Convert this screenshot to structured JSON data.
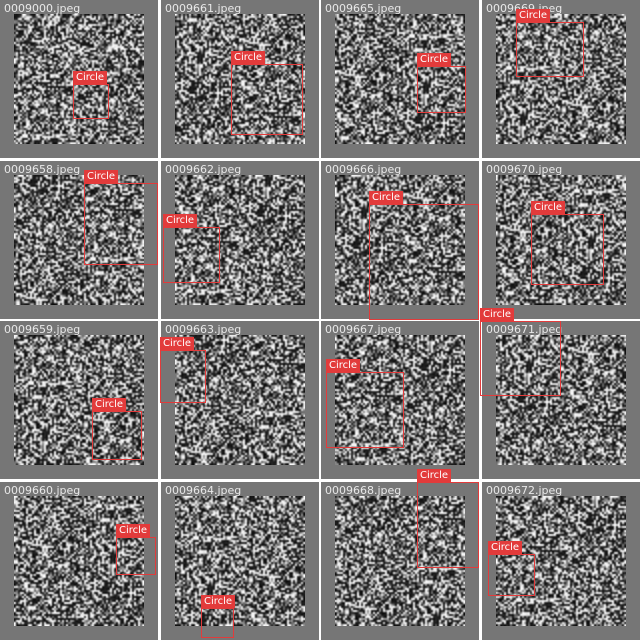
{
  "tiles": [
    {
      "filename": "0009000.jpeg",
      "detection": {
        "label": "Circle"
      }
    },
    {
      "filename": "0009661.jpeg",
      "detection": {
        "label": "Circle"
      }
    },
    {
      "filename": "0009665.jpeg",
      "detection": {
        "label": "Circle"
      }
    },
    {
      "filename": "0009669.jpeg",
      "detection": {
        "label": "Circle"
      }
    },
    {
      "filename": "0009658.jpeg",
      "detection": {
        "label": "Circle"
      }
    },
    {
      "filename": "0009662.jpeg",
      "detection": {
        "label": "Circle"
      }
    },
    {
      "filename": "0009666.jpeg",
      "detection": {
        "label": "Circle"
      }
    },
    {
      "filename": "0009670.jpeg",
      "detection": {
        "label": "Circle"
      }
    },
    {
      "filename": "0009659.jpeg",
      "detection": {
        "label": "Circle"
      }
    },
    {
      "filename": "0009663.jpeg",
      "detection": {
        "label": "Circle"
      }
    },
    {
      "filename": "0009667.jpeg",
      "detection": {
        "label": "Circle"
      }
    },
    {
      "filename": "0009671.jpeg",
      "detection": {
        "label": "Circle"
      }
    },
    {
      "filename": "0009660.jpeg",
      "detection": {
        "label": "Circle"
      }
    },
    {
      "filename": "0009664.jpeg",
      "detection": {
        "label": "Circle"
      }
    },
    {
      "filename": "0009668.jpeg",
      "detection": {
        "label": "Circle"
      }
    },
    {
      "filename": "0009672.jpeg",
      "detection": {
        "label": "Circle"
      }
    }
  ],
  "colors": {
    "background": "#ffffff",
    "tile": "#767676",
    "box": "#e23b3b",
    "label_text": "#ffffff",
    "filename_text": "#e8e8e8"
  }
}
